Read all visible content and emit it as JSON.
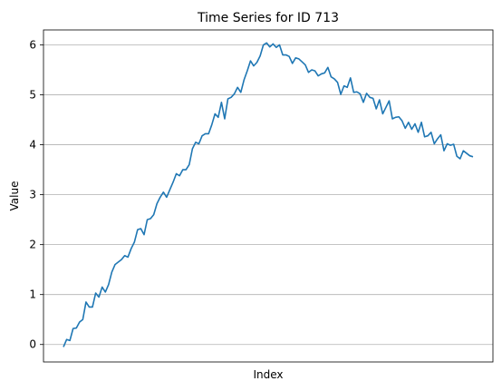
{
  "chart_data": {
    "type": "line",
    "title": "Time Series for ID 713",
    "xlabel": "Index",
    "ylabel": "Value",
    "ylim": [
      -0.35,
      6.3
    ],
    "yticks": [
      0,
      1,
      2,
      3,
      4,
      5,
      6
    ],
    "grid": "y-only",
    "x_ticks_shown": false,
    "series": [
      {
        "color": "#1f77b4",
        "values": [
          -0.05,
          0.1,
          0.08,
          0.32,
          0.33,
          0.45,
          0.5,
          0.85,
          0.75,
          0.75,
          1.03,
          0.95,
          1.15,
          1.05,
          1.2,
          1.45,
          1.6,
          1.65,
          1.7,
          1.78,
          1.75,
          1.92,
          2.05,
          2.3,
          2.32,
          2.2,
          2.5,
          2.52,
          2.6,
          2.82,
          2.95,
          3.05,
          2.95,
          3.1,
          3.25,
          3.42,
          3.38,
          3.5,
          3.5,
          3.6,
          3.92,
          4.05,
          4.02,
          4.18,
          4.22,
          4.22,
          4.4,
          4.62,
          4.55,
          4.85,
          4.52,
          4.92,
          4.95,
          5.02,
          5.15,
          5.05,
          5.3,
          5.48,
          5.68,
          5.58,
          5.65,
          5.78,
          6.0,
          6.04,
          5.96,
          6.02,
          5.95,
          6.0,
          5.8,
          5.8,
          5.77,
          5.63,
          5.74,
          5.72,
          5.66,
          5.6,
          5.45,
          5.5,
          5.48,
          5.38,
          5.42,
          5.44,
          5.55,
          5.36,
          5.32,
          5.25,
          5.01,
          5.18,
          5.15,
          5.34,
          5.05,
          5.06,
          5.02,
          4.85,
          5.03,
          4.95,
          4.93,
          4.72,
          4.9,
          4.62,
          4.75,
          4.88,
          4.52,
          4.55,
          4.56,
          4.48,
          4.33,
          4.45,
          4.31,
          4.42,
          4.25,
          4.45,
          4.16,
          4.18,
          4.25,
          4.02,
          4.12,
          4.2,
          3.88,
          4.02,
          3.99,
          4.01,
          3.77,
          3.72,
          3.88,
          3.83,
          3.78,
          3.76
        ]
      }
    ]
  }
}
